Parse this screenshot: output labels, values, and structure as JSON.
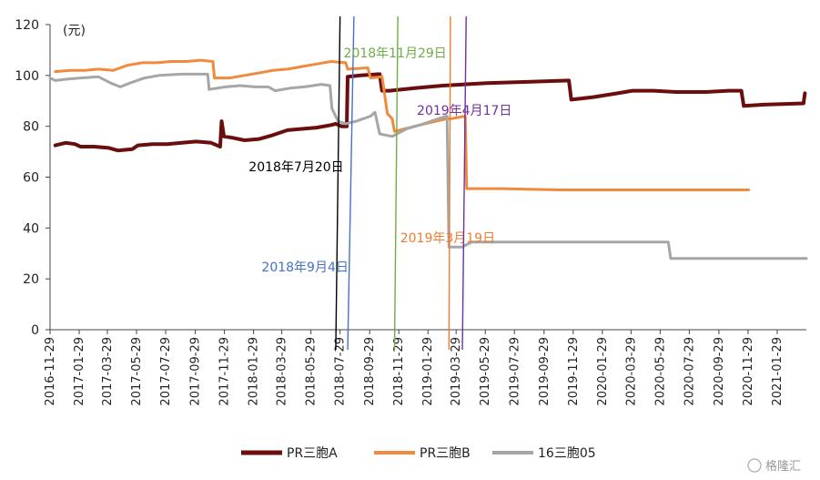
{
  "chart_data": {
    "type": "line",
    "unit_label": "(元)",
    "ylim": [
      0,
      120
    ],
    "yticks": [
      0,
      20,
      40,
      60,
      80,
      100,
      120
    ],
    "x_tick_labels": [
      "2016-11-29",
      "2017-01-29",
      "2017-03-29",
      "2017-05-29",
      "2017-07-29",
      "2017-09-29",
      "2017-11-29",
      "2018-01-29",
      "2018-03-29",
      "2018-05-29",
      "2018-07-29",
      "2018-09-29",
      "2018-11-29",
      "2019-01-29",
      "2019-03-29",
      "2019-05-29",
      "2019-07-29",
      "2019-09-29",
      "2019-11-29",
      "2020-01-29",
      "2020-03-29",
      "2020-05-29",
      "2020-07-29",
      "2020-09-29",
      "2020-11-29",
      "2021-01-29"
    ],
    "xlim": [
      "2016-11-29",
      "2021-03-31"
    ],
    "series": [
      {
        "name": "PR三胞A",
        "color": "#6b0e0e",
        "points": [
          [
            "2016-12-10",
            72.5
          ],
          [
            "2017-01-01",
            73.5
          ],
          [
            "2017-01-20",
            73
          ],
          [
            "2017-02-01",
            72
          ],
          [
            "2017-03-01",
            72
          ],
          [
            "2017-04-01",
            71.5
          ],
          [
            "2017-04-20",
            70.5
          ],
          [
            "2017-05-20",
            71
          ],
          [
            "2017-06-01",
            72.5
          ],
          [
            "2017-07-01",
            73
          ],
          [
            "2017-08-01",
            73
          ],
          [
            "2017-09-01",
            73.5
          ],
          [
            "2017-10-01",
            74
          ],
          [
            "2017-11-01",
            73.5
          ],
          [
            "2017-11-20",
            72
          ],
          [
            "2017-11-23",
            82
          ],
          [
            "2017-11-28",
            76
          ],
          [
            "2017-12-15",
            75.5
          ],
          [
            "2018-01-10",
            74.5
          ],
          [
            "2018-02-10",
            75
          ],
          [
            "2018-03-10",
            76.5
          ],
          [
            "2018-04-10",
            78.5
          ],
          [
            "2018-05-10",
            79
          ],
          [
            "2018-06-10",
            79.5
          ],
          [
            "2018-07-10",
            80.5
          ],
          [
            "2018-07-20",
            81
          ],
          [
            "2018-08-01",
            80
          ],
          [
            "2018-08-12",
            80
          ],
          [
            "2018-08-14",
            99.5
          ],
          [
            "2018-09-10",
            100
          ],
          [
            "2018-10-20",
            100.5
          ],
          [
            "2018-10-25",
            94
          ],
          [
            "2018-11-10",
            94
          ],
          [
            "2019-01-01",
            95
          ],
          [
            "2019-03-01",
            96
          ],
          [
            "2019-06-01",
            97
          ],
          [
            "2019-09-01",
            97.5
          ],
          [
            "2019-11-20",
            98
          ],
          [
            "2019-11-25",
            90.5
          ],
          [
            "2020-01-10",
            91.5
          ],
          [
            "2020-03-01",
            93
          ],
          [
            "2020-04-01",
            94
          ],
          [
            "2020-05-15",
            94
          ],
          [
            "2020-07-01",
            93.5
          ],
          [
            "2020-09-01",
            93.5
          ],
          [
            "2020-10-20",
            94
          ],
          [
            "2020-11-15",
            94
          ],
          [
            "2020-11-20",
            88
          ],
          [
            "2021-01-01",
            88.5
          ],
          [
            "2021-03-25",
            89
          ],
          [
            "2021-03-28",
            93
          ]
        ]
      },
      {
        "name": "PR三胞B",
        "color": "#f08a3c",
        "points": [
          [
            "2016-12-10",
            101.5
          ],
          [
            "2017-01-10",
            102
          ],
          [
            "2017-02-10",
            102
          ],
          [
            "2017-03-10",
            102.5
          ],
          [
            "2017-04-10",
            102
          ],
          [
            "2017-05-10",
            104
          ],
          [
            "2017-06-10",
            105
          ],
          [
            "2017-07-10",
            105
          ],
          [
            "2017-08-10",
            105.5
          ],
          [
            "2017-09-10",
            105.5
          ],
          [
            "2017-10-10",
            106
          ],
          [
            "2017-11-05",
            105.5
          ],
          [
            "2017-11-08",
            99
          ],
          [
            "2017-12-10",
            99
          ],
          [
            "2018-01-10",
            100
          ],
          [
            "2018-02-10",
            101
          ],
          [
            "2018-03-10",
            102
          ],
          [
            "2018-04-10",
            102.5
          ],
          [
            "2018-05-10",
            103.5
          ],
          [
            "2018-06-10",
            104.5
          ],
          [
            "2018-07-10",
            105.5
          ],
          [
            "2018-08-10",
            105
          ],
          [
            "2018-08-14",
            102.5
          ],
          [
            "2018-09-25",
            103
          ],
          [
            "2018-10-01",
            99
          ],
          [
            "2018-10-25",
            99.5
          ],
          [
            "2018-11-05",
            85
          ],
          [
            "2018-11-15",
            83
          ],
          [
            "2018-11-20",
            78
          ],
          [
            "2019-01-01",
            80
          ],
          [
            "2019-02-15",
            82
          ],
          [
            "2019-03-10",
            83
          ],
          [
            "2019-03-19",
            83
          ],
          [
            "2019-04-17",
            84
          ],
          [
            "2019-04-20",
            55.5
          ],
          [
            "2019-07-01",
            55.5
          ],
          [
            "2019-11-01",
            55
          ],
          [
            "2020-03-01",
            55
          ],
          [
            "2020-07-01",
            55
          ],
          [
            "2020-11-01",
            55
          ],
          [
            "2020-11-30",
            55
          ]
        ]
      },
      {
        "name": "16三胞05",
        "color": "#a6a6a6",
        "points": [
          [
            "2016-11-29",
            99
          ],
          [
            "2016-12-10",
            98
          ],
          [
            "2017-01-01",
            98.5
          ],
          [
            "2017-02-01",
            99
          ],
          [
            "2017-03-10",
            99.5
          ],
          [
            "2017-04-05",
            97
          ],
          [
            "2017-04-25",
            95.5
          ],
          [
            "2017-05-15",
            97
          ],
          [
            "2017-06-15",
            99
          ],
          [
            "2017-07-15",
            100
          ],
          [
            "2017-09-01",
            100.5
          ],
          [
            "2017-10-25",
            100.5
          ],
          [
            "2017-10-28",
            94.5
          ],
          [
            "2017-12-01",
            95.5
          ],
          [
            "2018-01-01",
            96
          ],
          [
            "2018-02-01",
            95.5
          ],
          [
            "2018-03-01",
            95.5
          ],
          [
            "2018-03-15",
            94
          ],
          [
            "2018-04-15",
            95
          ],
          [
            "2018-05-15",
            95.5
          ],
          [
            "2018-06-20",
            96.5
          ],
          [
            "2018-07-08",
            96
          ],
          [
            "2018-07-12",
            87
          ],
          [
            "2018-07-25",
            82
          ],
          [
            "2018-08-10",
            81
          ],
          [
            "2018-09-01",
            82
          ],
          [
            "2018-10-01",
            84
          ],
          [
            "2018-10-10",
            85.5
          ],
          [
            "2018-10-20",
            77
          ],
          [
            "2018-11-15",
            76
          ],
          [
            "2018-12-15",
            79
          ],
          [
            "2019-01-20",
            81
          ],
          [
            "2019-02-20",
            83
          ],
          [
            "2019-03-10",
            84
          ],
          [
            "2019-03-14",
            32.5
          ],
          [
            "2019-04-10",
            32.5
          ],
          [
            "2019-05-01",
            34.5
          ],
          [
            "2019-08-01",
            34.5
          ],
          [
            "2020-01-01",
            34.5
          ],
          [
            "2020-06-15",
            34.5
          ],
          [
            "2020-06-20",
            28
          ],
          [
            "2021-03-31",
            28
          ]
        ]
      }
    ],
    "events": [
      {
        "label": "2018年7月20日",
        "color": "#000000",
        "x_bottom": "2018-07-20",
        "x_top": "2018-07-29"
      },
      {
        "label": "2018年9月4日",
        "color": "#4472c4",
        "x_bottom": "2018-08-14",
        "x_top": "2018-08-27"
      },
      {
        "label": "2018年11月29日",
        "color": "#70ad47",
        "x_bottom": "2018-11-20",
        "x_top": "2018-11-27"
      },
      {
        "label": "2019年3月19日",
        "color": "#ed7d31",
        "x_bottom": "2019-03-14",
        "x_top": "2019-03-17"
      },
      {
        "label": "2019年4月17日",
        "color": "#7030a0",
        "x_bottom": "2019-04-11",
        "x_top": "2019-04-19"
      }
    ]
  },
  "watermark": "格隆汇"
}
